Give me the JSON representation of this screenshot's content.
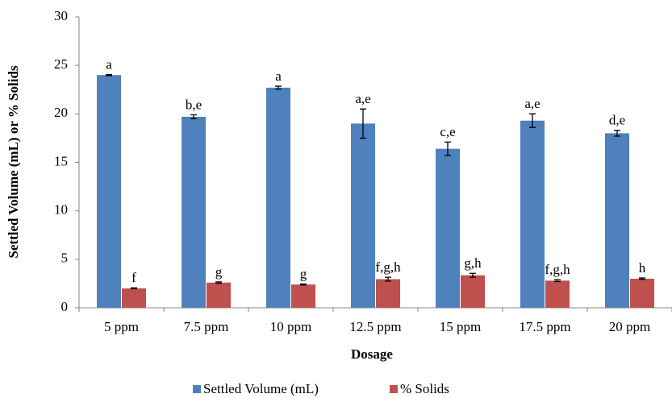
{
  "chart_data": {
    "type": "bar",
    "x_label": "Dosage",
    "y_label": "Settled Volume (mL) or % Solids",
    "categories": [
      "5 ppm",
      "7.5 ppm",
      "10 ppm",
      "12.5 ppm",
      "15 ppm",
      "17.5 ppm",
      "20 ppm"
    ],
    "series": [
      {
        "name": "Settled Volume (mL)",
        "color": "#4f81bd",
        "values": [
          24.0,
          19.7,
          22.7,
          19.0,
          16.4,
          19.3,
          18.0
        ],
        "errors": [
          0.05,
          0.2,
          0.15,
          1.5,
          0.7,
          0.7,
          0.3
        ],
        "annotations": [
          "a",
          "b,e",
          "a",
          "a,e",
          "c,e",
          "a,e",
          "d,e"
        ]
      },
      {
        "name": "% Solids",
        "color": "#c0504d",
        "values": [
          2.0,
          2.6,
          2.4,
          2.95,
          3.35,
          2.8,
          3.0
        ],
        "errors": [
          0.05,
          0.07,
          0.05,
          0.2,
          0.2,
          0.1,
          0.07
        ],
        "annotations": [
          "f",
          "g",
          "g",
          "f,g,h",
          "g,h",
          "f,g,h",
          "h"
        ]
      }
    ],
    "ylim": [
      0,
      30
    ],
    "yticks": [
      0,
      5,
      10,
      15,
      20,
      25,
      30
    ],
    "grid": false,
    "legend": "bottom"
  }
}
